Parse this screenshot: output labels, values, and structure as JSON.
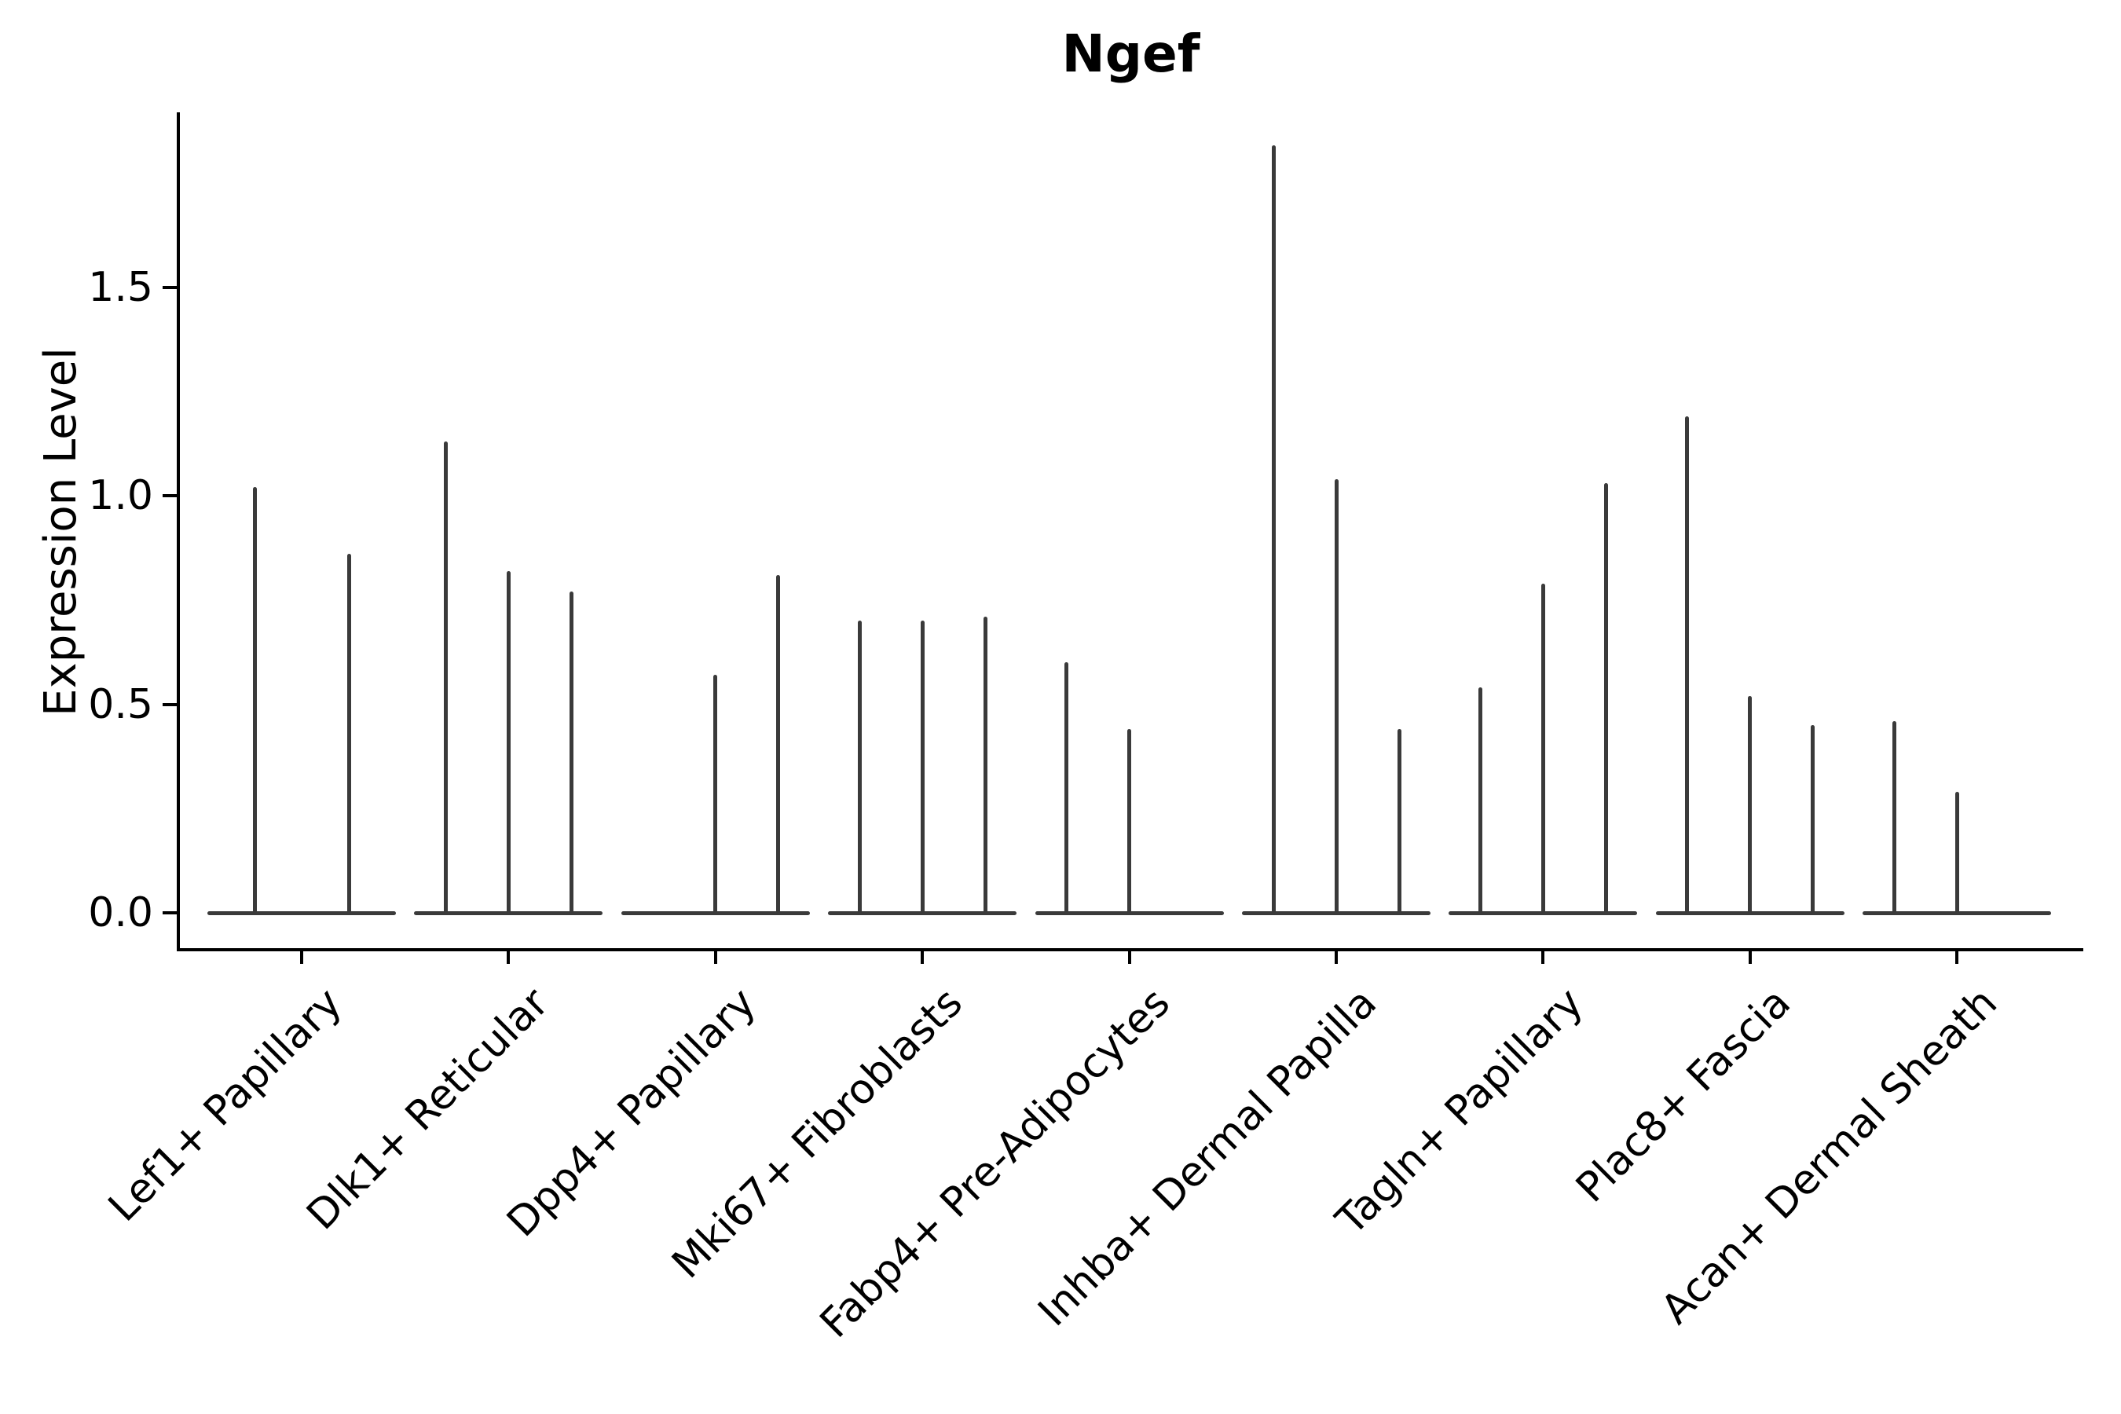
{
  "chart_data": {
    "type": "violin",
    "title": "Ngef",
    "xlabel": "",
    "ylabel": "Expression Level",
    "yticks": [
      0.0,
      0.5,
      1.0,
      1.5
    ],
    "ylim": [
      -0.09,
      1.92
    ],
    "grid": false,
    "legend_position": "none",
    "colors": {
      "violin": "#3a3a3a",
      "axis": "#000000"
    },
    "categories": [
      "Lef1+ Papillary",
      "Dlk1+ Reticular",
      "Dpp4+ Papillary",
      "Mki67+ Fibroblasts",
      "Fabp4+ Pre-Adipocytes",
      "Inhba+ Dermal Papilla",
      "Tagln+ Papillary",
      "Plac8+ Fascia",
      "Acan+ Dermal Sheath"
    ],
    "series": [
      {
        "category": "Lef1+ Papillary",
        "violin_peaks": [
          1.02,
          0.86
        ]
      },
      {
        "category": "Dlk1+ Reticular",
        "violin_peaks": [
          1.13,
          0.82,
          0.77
        ]
      },
      {
        "category": "Dpp4+ Papillary",
        "violin_peaks": [
          0.0,
          0.57,
          0.81
        ]
      },
      {
        "category": "Mki67+ Fibroblasts",
        "violin_peaks": [
          0.7,
          0.7,
          0.71
        ]
      },
      {
        "category": "Fabp4+ Pre-Adipocytes",
        "violin_peaks": [
          0.6,
          0.44,
          0.0
        ]
      },
      {
        "category": "Inhba+ Dermal Papilla",
        "violin_peaks": [
          1.84,
          1.04,
          0.44
        ]
      },
      {
        "category": "Tagln+ Papillary",
        "violin_peaks": [
          0.54,
          0.79,
          1.03
        ]
      },
      {
        "category": "Plac8+ Fascia",
        "violin_peaks": [
          1.19,
          0.52,
          0.45
        ]
      },
      {
        "category": "Acan+ Dermal Sheath",
        "violin_peaks": [
          0.46,
          0.29,
          0.0
        ]
      }
    ]
  }
}
